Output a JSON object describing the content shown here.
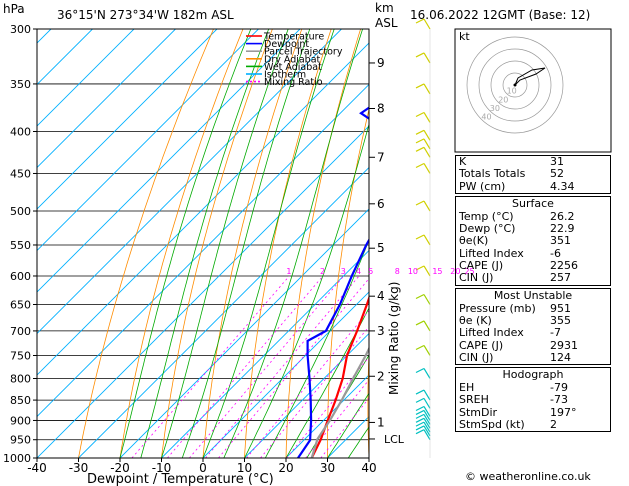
{
  "header": {
    "location": "36°15'N  273°34'W  182m  ASL",
    "datetime": "16.06.2022  12GMT  (Base: 12)",
    "pressure_unit": "hPa",
    "km_unit": "km",
    "asl_label": "ASL"
  },
  "chart_data": {
    "type": "line",
    "title": "",
    "xlabel": "Dewpoint / Temperature (°C)",
    "ylabel": "hPa",
    "right_axis_label": "Mixing Ratio (g/kg)",
    "xlim": [
      -40,
      40
    ],
    "ylim": [
      1000,
      300
    ],
    "x_ticks": [
      -40,
      -30,
      -20,
      -10,
      0,
      10,
      20,
      30,
      40
    ],
    "y_ticks": [
      300,
      350,
      400,
      450,
      500,
      550,
      600,
      650,
      700,
      750,
      800,
      850,
      900,
      950,
      1000
    ],
    "km_ticks": [
      {
        "km": 1,
        "p": 905
      },
      {
        "km": 2,
        "p": 795
      },
      {
        "km": 3,
        "p": 700
      },
      {
        "km": 4,
        "p": 635
      },
      {
        "km": 5,
        "p": 555
      },
      {
        "km": 6,
        "p": 490
      },
      {
        "km": 7,
        "p": 430
      },
      {
        "km": 8,
        "p": 375
      },
      {
        "km": 9,
        "p": 330
      }
    ],
    "lcl_label": "LCL",
    "lcl_p": 948,
    "mixing_ratio_labels": [
      "1",
      "2",
      "3",
      "4",
      "5",
      "8",
      "10",
      "15",
      "20",
      "25"
    ],
    "mixing_ratio_values": [
      1,
      2,
      3,
      4,
      5,
      8,
      10,
      15,
      20,
      25
    ],
    "legend": {
      "position": "top-left",
      "entries": [
        {
          "name": "Temperature",
          "color": "#ff0000"
        },
        {
          "name": "Dewpoint",
          "color": "#0000ff"
        },
        {
          "name": "Parcel Trajectory",
          "color": "#999999"
        },
        {
          "name": "Dry Adiabat",
          "color": "#ff8c00"
        },
        {
          "name": "Wet Adiabat",
          "color": "#00aa00"
        },
        {
          "name": "Isotherm",
          "color": "#00b0ff"
        },
        {
          "name": "Mixing Ratio",
          "color": "#ff00ff"
        }
      ]
    },
    "series": [
      {
        "name": "Temperature",
        "color": "#ff0000",
        "points": [
          {
            "p": 1000,
            "t": 26.2
          },
          {
            "p": 951,
            "t": 24
          },
          {
            "p": 900,
            "t": 21
          },
          {
            "p": 850,
            "t": 18
          },
          {
            "p": 800,
            "t": 14.5
          },
          {
            "p": 750,
            "t": 10
          },
          {
            "p": 700,
            "t": 6.5
          },
          {
            "p": 650,
            "t": 2.5
          },
          {
            "p": 600,
            "t": -2
          },
          {
            "p": 550,
            "t": -7
          },
          {
            "p": 500,
            "t": -13
          },
          {
            "p": 450,
            "t": -19
          },
          {
            "p": 400,
            "t": -26
          },
          {
            "p": 350,
            "t": -35
          },
          {
            "p": 300,
            "t": -45
          }
        ]
      },
      {
        "name": "Dewpoint",
        "color": "#0000ff",
        "points": [
          {
            "p": 1000,
            "t": 22.9
          },
          {
            "p": 951,
            "t": 21.5
          },
          {
            "p": 900,
            "t": 17
          },
          {
            "p": 850,
            "t": 12
          },
          {
            "p": 800,
            "t": 6.5
          },
          {
            "p": 750,
            "t": 0.5
          },
          {
            "p": 720,
            "t": -3
          },
          {
            "p": 700,
            "t": -1
          },
          {
            "p": 650,
            "t": -4
          },
          {
            "p": 600,
            "t": -8
          },
          {
            "p": 550,
            "t": -12
          },
          {
            "p": 520,
            "t": -14
          },
          {
            "p": 500,
            "t": -18
          },
          {
            "p": 450,
            "t": -28
          },
          {
            "p": 420,
            "t": -34
          },
          {
            "p": 400,
            "t": -34
          },
          {
            "p": 380,
            "t": -45
          },
          {
            "p": 370,
            "t": -44
          },
          {
            "p": 350,
            "t": -50
          },
          {
            "p": 330,
            "t": -51
          },
          {
            "p": 300,
            "t": -57
          }
        ]
      },
      {
        "name": "Parcel Trajectory",
        "color": "#999999",
        "points": [
          {
            "p": 1000,
            "t": 26.2
          },
          {
            "p": 948,
            "t": 23
          },
          {
            "p": 900,
            "t": 21.5
          },
          {
            "p": 850,
            "t": 19.5
          },
          {
            "p": 800,
            "t": 17
          },
          {
            "p": 750,
            "t": 14.5
          },
          {
            "p": 700,
            "t": 11.5
          },
          {
            "p": 650,
            "t": 8
          },
          {
            "p": 600,
            "t": 4.5
          },
          {
            "p": 550,
            "t": 0
          },
          {
            "p": 500,
            "t": -5
          },
          {
            "p": 450,
            "t": -11
          },
          {
            "p": 400,
            "t": -18
          },
          {
            "p": 350,
            "t": -27
          },
          {
            "p": 300,
            "t": -38
          }
        ]
      }
    ]
  },
  "hodograph": {
    "label": "kt",
    "ring_labels": [
      "10",
      "20",
      "30",
      "40"
    ]
  },
  "indices": {
    "rows": [
      {
        "label": "K",
        "value": "31"
      },
      {
        "label": "Totals Totals",
        "value": "52"
      },
      {
        "label": "PW (cm)",
        "value": "4.34"
      }
    ]
  },
  "surface": {
    "title": "Surface",
    "rows": [
      {
        "label": "Temp (°C)",
        "value": "26.2"
      },
      {
        "label": "Dewp (°C)",
        "value": "22.9"
      },
      {
        "label": "θe(K)",
        "value": "351"
      },
      {
        "label": "Lifted Index",
        "value": "-6"
      },
      {
        "label": "CAPE (J)",
        "value": "2256"
      },
      {
        "label": "CIN (J)",
        "value": "257"
      }
    ]
  },
  "most_unstable": {
    "title": "Most Unstable",
    "rows": [
      {
        "label": "Pressure (mb)",
        "value": "951"
      },
      {
        "label": "θe (K)",
        "value": "355"
      },
      {
        "label": "Lifted Index",
        "value": "-7"
      },
      {
        "label": "CAPE (J)",
        "value": "2931"
      },
      {
        "label": "CIN (J)",
        "value": "124"
      }
    ]
  },
  "hodograph_table": {
    "title": "Hodograph",
    "rows": [
      {
        "label": "EH",
        "value": "-79"
      },
      {
        "label": "SREH",
        "value": "-73"
      },
      {
        "label": "StmDir",
        "value": "197°"
      },
      {
        "label": "StmSpd (kt)",
        "value": "2"
      }
    ]
  },
  "copyright": "© weatheronline.co.uk"
}
